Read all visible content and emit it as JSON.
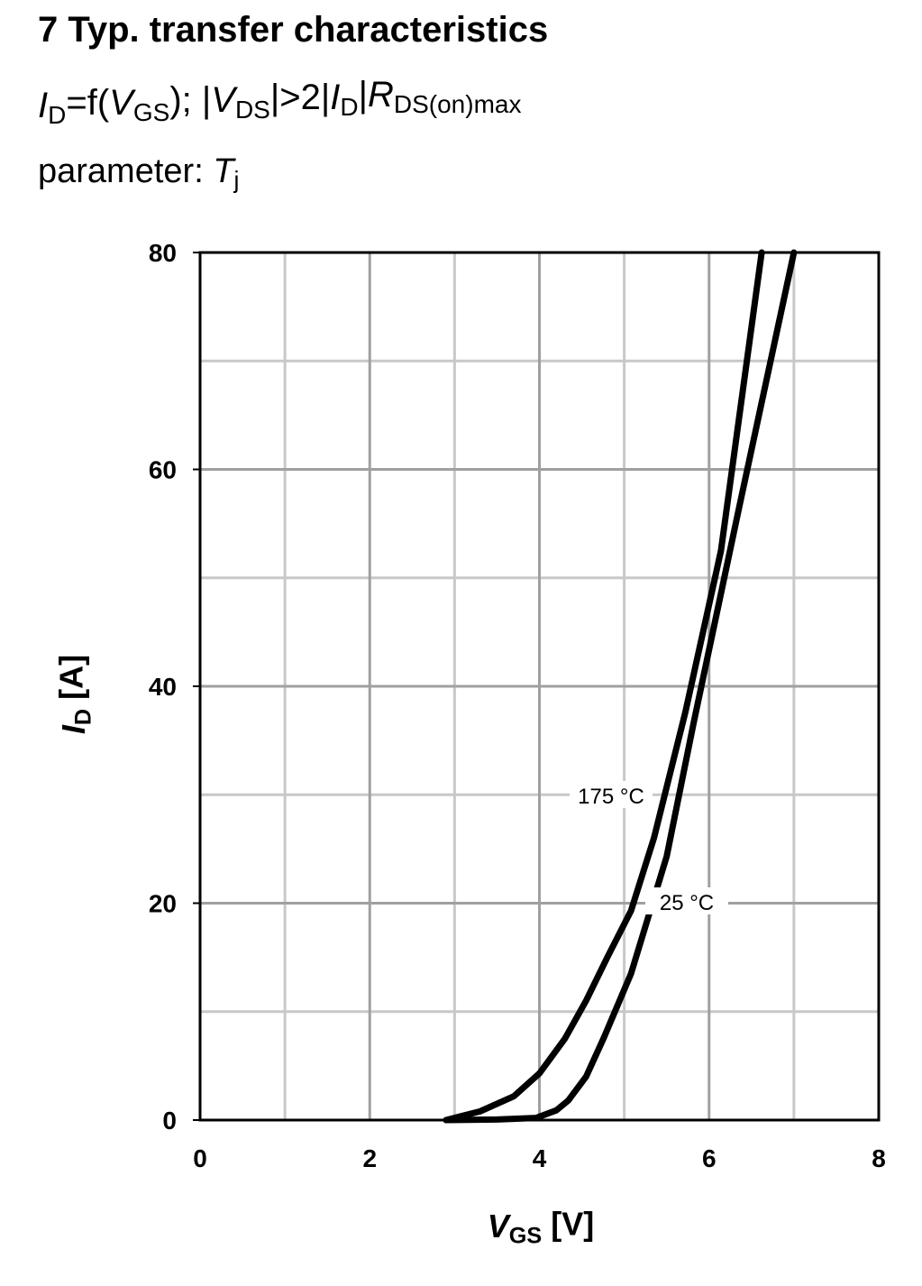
{
  "chart_data": {
    "type": "line",
    "title": "7 Typ. transfer characteristics",
    "subtitle": [
      {
        "text": "I",
        "style": "italic"
      },
      {
        "text": "D",
        "style": "sub"
      },
      {
        "text": "=f(",
        "style": "normal"
      },
      {
        "text": "V",
        "style": "italic"
      },
      {
        "text": "GS",
        "style": "sub"
      },
      {
        "text": "); |",
        "style": "normal"
      },
      {
        "text": "V",
        "style": "italic"
      },
      {
        "text": "DS",
        "style": "sub"
      },
      {
        "text": "|>2|",
        "style": "normal"
      },
      {
        "text": "I",
        "style": "italic"
      },
      {
        "text": "D",
        "style": "sub"
      },
      {
        "text": "|",
        "style": "normal"
      },
      {
        "text": "R",
        "style": "italic"
      },
      {
        "text": "DS(on)max",
        "style": "sub"
      }
    ],
    "parameter": [
      {
        "text": "parameter: ",
        "style": "normal"
      },
      {
        "text": "T",
        "style": "italic"
      },
      {
        "text": "j",
        "style": "sub"
      }
    ],
    "x_label": [
      {
        "text": "V",
        "style": "italic"
      },
      {
        "text": "GS",
        "style": "sub"
      },
      {
        "text": " [V]",
        "style": "normal"
      }
    ],
    "y_label": [
      {
        "text": "I",
        "style": "italic"
      },
      {
        "text": "D",
        "style": "sub"
      },
      {
        "text": " [A]",
        "style": "normal"
      }
    ],
    "xlim": [
      0,
      8
    ],
    "xticks": [
      0,
      2,
      4,
      6,
      8
    ],
    "minor_xticks": [
      1,
      3,
      5,
      7
    ],
    "ylim": [
      0,
      80
    ],
    "yticks": [
      0,
      20,
      40,
      60,
      80
    ],
    "minor_yticks": [
      10,
      30,
      50,
      70
    ],
    "grid": true,
    "series": [
      {
        "name": "175 °C",
        "color": "#000000",
        "x": [
          2.9,
          3.3,
          3.7,
          4.0,
          4.3,
          4.55,
          4.8,
          5.08,
          5.35,
          5.72,
          6.14,
          6.62
        ],
        "values": [
          0,
          0.8,
          2.2,
          4.3,
          7.5,
          11,
          15,
          19.3,
          26,
          37.6,
          52.5,
          80
        ]
      },
      {
        "name": "25 °C",
        "color": "#000000",
        "x": [
          2.9,
          3.5,
          3.96,
          4.2,
          4.34,
          4.55,
          4.76,
          5.08,
          5.5,
          5.82,
          6.36,
          7.0
        ],
        "values": [
          0,
          0.05,
          0.2,
          0.9,
          1.8,
          4,
          7.6,
          13.5,
          24.3,
          36.7,
          56.7,
          80
        ]
      }
    ]
  }
}
